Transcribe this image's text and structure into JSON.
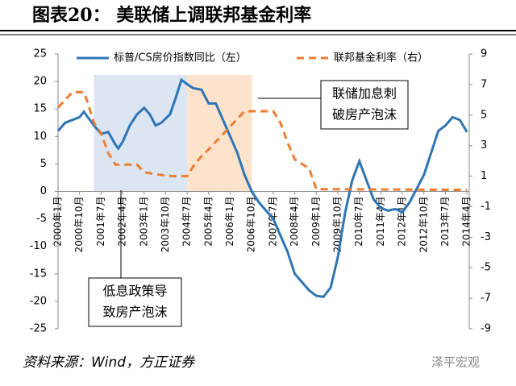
{
  "chart_data": {
    "type": "line",
    "title": "图表20：  美联储上调联邦基金利率",
    "source": "资料来源：Wind，方正证券",
    "watermark": "泽平宏观",
    "xlim": [
      2000,
      2014.33
    ],
    "xticks": [
      {
        "value": 2000,
        "label": "2000年1月"
      },
      {
        "value": 2000.75,
        "label": "2000年10月"
      },
      {
        "value": 2001.5,
        "label": "2001年7月"
      },
      {
        "value": 2002.25,
        "label": "2002年4月"
      },
      {
        "value": 2003,
        "label": "2003年1月"
      },
      {
        "value": 2003.75,
        "label": "2003年10月"
      },
      {
        "value": 2004.5,
        "label": "2004年7月"
      },
      {
        "value": 2005.25,
        "label": "2005年4月"
      },
      {
        "value": 2006,
        "label": "2006年1月"
      },
      {
        "value": 2006.75,
        "label": "2006年10月"
      },
      {
        "value": 2007.5,
        "label": "2007年7月"
      },
      {
        "value": 2008.25,
        "label": "2008年4月"
      },
      {
        "value": 2009,
        "label": "2009年1月"
      },
      {
        "value": 2009.75,
        "label": "2009年10月"
      },
      {
        "value": 2010.5,
        "label": "2010年7月"
      },
      {
        "value": 2011.25,
        "label": "2011年4月"
      },
      {
        "value": 2012,
        "label": "2012年1月"
      },
      {
        "value": 2012.75,
        "label": "2012年10月"
      },
      {
        "value": 2013.5,
        "label": "2013年7月"
      },
      {
        "value": 2014.25,
        "label": "2014年4月"
      }
    ],
    "ylim": [
      -25,
      25
    ],
    "yticks": [
      25,
      20,
      15,
      10,
      5,
      0,
      -5,
      -10,
      -15,
      -20,
      -25
    ],
    "y2lim": [
      -9,
      9
    ],
    "y2ticks": [
      9,
      7,
      5,
      3,
      1,
      -1,
      -3,
      -5,
      -7,
      -9
    ],
    "bands": [
      {
        "x": [
          2001.25,
          2004.5
        ],
        "color": "#dce6f2"
      },
      {
        "x": [
          2004.5,
          2006.75
        ],
        "color": "#fde3cc"
      }
    ],
    "series": [
      {
        "name": "标普/CS房价指数同比（左）",
        "color": "#2e75b6",
        "dash": false,
        "x": [
          2000,
          2000.25,
          2000.5,
          2000.75,
          2000.9,
          2001.25,
          2001.5,
          2001.75,
          2002,
          2002.1,
          2002.25,
          2002.5,
          2002.75,
          2003,
          2003.2,
          2003.4,
          2003.6,
          2003.9,
          2004.1,
          2004.3,
          2004.5,
          2004.7,
          2005,
          2005.25,
          2005.5,
          2005.75,
          2006,
          2006.25,
          2006.5,
          2006.75,
          2007,
          2007.25,
          2007.5,
          2007.75,
          2008,
          2008.25,
          2008.5,
          2008.75,
          2009,
          2009.25,
          2009.5,
          2009.75,
          2010,
          2010.25,
          2010.5,
          2010.75,
          2011,
          2011.25,
          2011.5,
          2011.75,
          2012,
          2012.25,
          2012.5,
          2012.75,
          2013,
          2013.25,
          2013.5,
          2013.75,
          2014,
          2014.25
        ],
        "values": [
          11,
          12.5,
          13,
          13.5,
          14.5,
          12,
          10.5,
          10.8,
          8.5,
          7.8,
          9,
          12,
          14,
          15.2,
          14,
          12,
          12.5,
          14,
          17,
          20.3,
          19.5,
          18.8,
          18.5,
          16,
          16,
          13,
          10,
          7,
          3,
          0,
          -2,
          -3.5,
          -5,
          -8,
          -11,
          -15,
          -16.5,
          -18,
          -19,
          -19.2,
          -17.5,
          -12,
          -4,
          2,
          5.5,
          2,
          -1.5,
          -3,
          -3.5,
          -3.2,
          -3.8,
          -2,
          0.5,
          3,
          7,
          11,
          12,
          13.5,
          13,
          10.8
        ]
      },
      {
        "name": "联邦基金利率（右）",
        "color": "#ed7d31",
        "dash": true,
        "axis": "y2",
        "x": [
          2000,
          2000.25,
          2000.5,
          2000.9,
          2001,
          2001.25,
          2001.5,
          2001.75,
          2002,
          2002.75,
          2003,
          2003.5,
          2004,
          2004.5,
          2004.75,
          2005,
          2005.25,
          2005.5,
          2005.75,
          2006,
          2006.25,
          2006.5,
          2007.5,
          2007.75,
          2008,
          2008.25,
          2008.75,
          2009,
          2014.25
        ],
        "values": [
          5.5,
          6,
          6.5,
          6.5,
          6,
          4.5,
          3.8,
          2.5,
          1.75,
          1.75,
          1.25,
          1.1,
          1.0,
          1.0,
          1.75,
          2.3,
          2.75,
          3.25,
          3.75,
          4.25,
          4.75,
          5.25,
          5.25,
          4.5,
          3.2,
          2.1,
          1.5,
          0.15,
          0.1
        ]
      }
    ],
    "annotations": [
      {
        "lines": [
          "联储加息刺",
          "破房产泡沫"
        ]
      },
      {
        "lines": [
          "低息政策导",
          "致房产泡沫"
        ]
      }
    ]
  }
}
